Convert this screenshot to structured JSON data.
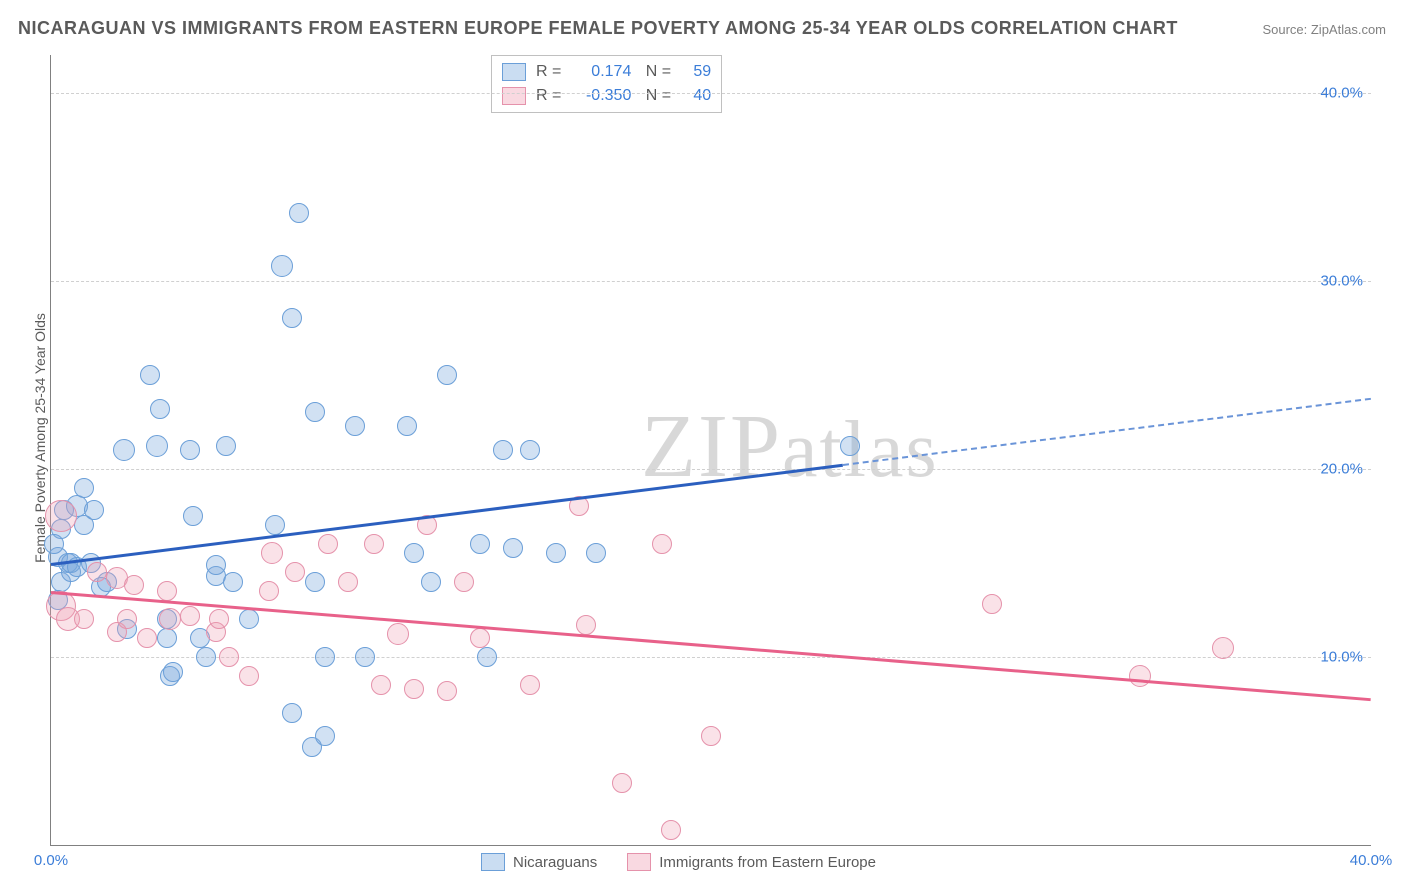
{
  "title": "NICARAGUAN VS IMMIGRANTS FROM EASTERN EUROPE FEMALE POVERTY AMONG 25-34 YEAR OLDS CORRELATION CHART",
  "source": "Source: ZipAtlas.com",
  "y_axis_label": "Female Poverty Among 25-34 Year Olds",
  "watermark": "ZIPatlas",
  "chart": {
    "type": "scatter",
    "xlim": [
      0,
      40
    ],
    "ylim": [
      0,
      42
    ],
    "x_ticks": [
      {
        "v": 0,
        "label": "0.0%"
      },
      {
        "v": 40,
        "label": "40.0%"
      }
    ],
    "y_ticks": [
      {
        "v": 10,
        "label": "10.0%"
      },
      {
        "v": 20,
        "label": "20.0%"
      },
      {
        "v": 30,
        "label": "30.0%"
      },
      {
        "v": 40,
        "label": "40.0%"
      }
    ],
    "background_color": "#ffffff",
    "grid_color": "#d0d0d0",
    "series": [
      {
        "name": "Nicaraguans",
        "color_fill": "rgba(123,170,222,0.35)",
        "color_stroke": "#6b9fd8",
        "marker_class": "blue",
        "r_value": "0.174",
        "n_value": "59",
        "trend": {
          "x0": 0,
          "y0": 15.0,
          "x1": 40,
          "y1": 23.8,
          "dash_after_x": 24,
          "color": "#2b5fbf"
        },
        "points": [
          {
            "x": 0.2,
            "y": 15.3,
            "r": 9
          },
          {
            "x": 0.3,
            "y": 14.0,
            "r": 9
          },
          {
            "x": 0.3,
            "y": 16.8,
            "r": 9
          },
          {
            "x": 0.5,
            "y": 15.0,
            "r": 9
          },
          {
            "x": 0.4,
            "y": 17.8,
            "r": 9
          },
          {
            "x": 0.6,
            "y": 14.5,
            "r": 9
          },
          {
            "x": 0.6,
            "y": 15.0,
            "r": 9
          },
          {
            "x": 0.8,
            "y": 18.0,
            "r": 10
          },
          {
            "x": 0.8,
            "y": 14.8,
            "r": 9
          },
          {
            "x": 1.0,
            "y": 17.0,
            "r": 9
          },
          {
            "x": 1.0,
            "y": 19.0,
            "r": 9
          },
          {
            "x": 1.3,
            "y": 17.8,
            "r": 9
          },
          {
            "x": 1.2,
            "y": 15.0,
            "r": 9
          },
          {
            "x": 1.5,
            "y": 13.7,
            "r": 9
          },
          {
            "x": 1.7,
            "y": 14.0,
            "r": 9
          },
          {
            "x": 2.2,
            "y": 21.0,
            "r": 10
          },
          {
            "x": 2.3,
            "y": 11.5,
            "r": 9
          },
          {
            "x": 3.0,
            "y": 25.0,
            "r": 9
          },
          {
            "x": 3.2,
            "y": 21.2,
            "r": 10
          },
          {
            "x": 3.3,
            "y": 23.2,
            "r": 9
          },
          {
            "x": 3.5,
            "y": 12.0,
            "r": 9
          },
          {
            "x": 3.5,
            "y": 11.0,
            "r": 9
          },
          {
            "x": 3.6,
            "y": 9.0,
            "r": 9
          },
          {
            "x": 3.7,
            "y": 9.2,
            "r": 9
          },
          {
            "x": 4.2,
            "y": 21.0,
            "r": 9
          },
          {
            "x": 4.3,
            "y": 17.5,
            "r": 9
          },
          {
            "x": 4.5,
            "y": 11.0,
            "r": 9
          },
          {
            "x": 4.7,
            "y": 10.0,
            "r": 9
          },
          {
            "x": 5.0,
            "y": 14.3,
            "r": 9
          },
          {
            "x": 5.0,
            "y": 14.9,
            "r": 9
          },
          {
            "x": 5.3,
            "y": 21.2,
            "r": 9
          },
          {
            "x": 5.5,
            "y": 14.0,
            "r": 9
          },
          {
            "x": 6.0,
            "y": 12.0,
            "r": 9
          },
          {
            "x": 6.8,
            "y": 17.0,
            "r": 9
          },
          {
            "x": 7.0,
            "y": 30.8,
            "r": 10
          },
          {
            "x": 7.3,
            "y": 28.0,
            "r": 9
          },
          {
            "x": 7.3,
            "y": 7.0,
            "r": 9
          },
          {
            "x": 7.5,
            "y": 33.6,
            "r": 9
          },
          {
            "x": 7.9,
            "y": 5.2,
            "r": 9
          },
          {
            "x": 8.0,
            "y": 23.0,
            "r": 9
          },
          {
            "x": 8.0,
            "y": 14.0,
            "r": 9
          },
          {
            "x": 8.3,
            "y": 10.0,
            "r": 9
          },
          {
            "x": 8.3,
            "y": 5.8,
            "r": 9
          },
          {
            "x": 9.2,
            "y": 22.3,
            "r": 9
          },
          {
            "x": 9.5,
            "y": 10.0,
            "r": 9
          },
          {
            "x": 10.8,
            "y": 22.3,
            "r": 9
          },
          {
            "x": 11.0,
            "y": 15.5,
            "r": 9
          },
          {
            "x": 11.5,
            "y": 14.0,
            "r": 9
          },
          {
            "x": 12.0,
            "y": 25.0,
            "r": 9
          },
          {
            "x": 13.0,
            "y": 16.0,
            "r": 9
          },
          {
            "x": 13.2,
            "y": 10.0,
            "r": 9
          },
          {
            "x": 13.7,
            "y": 21.0,
            "r": 9
          },
          {
            "x": 14.0,
            "y": 15.8,
            "r": 9
          },
          {
            "x": 14.5,
            "y": 21.0,
            "r": 9
          },
          {
            "x": 15.3,
            "y": 15.5,
            "r": 9
          },
          {
            "x": 16.5,
            "y": 15.5,
            "r": 9
          },
          {
            "x": 24.2,
            "y": 21.2,
            "r": 9
          },
          {
            "x": 0.1,
            "y": 16.0,
            "r": 9
          },
          {
            "x": 0.2,
            "y": 13.0,
            "r": 9
          }
        ]
      },
      {
        "name": "Immigrants from Eastern Europe",
        "color_fill": "rgba(240,160,180,0.3)",
        "color_stroke": "#e592ab",
        "marker_class": "pink",
        "r_value": "-0.350",
        "n_value": "40",
        "trend": {
          "x0": 0,
          "y0": 13.5,
          "x1": 40,
          "y1": 7.8,
          "color": "#e8618a"
        },
        "points": [
          {
            "x": 0.3,
            "y": 17.5,
            "r": 15
          },
          {
            "x": 0.3,
            "y": 12.7,
            "r": 14
          },
          {
            "x": 0.5,
            "y": 12.0,
            "r": 11
          },
          {
            "x": 1.0,
            "y": 12.0,
            "r": 9
          },
          {
            "x": 1.4,
            "y": 14.5,
            "r": 9
          },
          {
            "x": 2.0,
            "y": 14.2,
            "r": 10
          },
          {
            "x": 2.0,
            "y": 11.3,
            "r": 9
          },
          {
            "x": 2.3,
            "y": 12.0,
            "r": 9
          },
          {
            "x": 2.5,
            "y": 13.8,
            "r": 9
          },
          {
            "x": 2.9,
            "y": 11.0,
            "r": 9
          },
          {
            "x": 3.5,
            "y": 13.5,
            "r": 9
          },
          {
            "x": 3.6,
            "y": 12.0,
            "r": 10
          },
          {
            "x": 4.2,
            "y": 12.2,
            "r": 9
          },
          {
            "x": 5.0,
            "y": 11.3,
            "r": 9
          },
          {
            "x": 5.1,
            "y": 12.0,
            "r": 9
          },
          {
            "x": 5.4,
            "y": 10.0,
            "r": 9
          },
          {
            "x": 6.7,
            "y": 15.5,
            "r": 10
          },
          {
            "x": 6.6,
            "y": 13.5,
            "r": 9
          },
          {
            "x": 7.4,
            "y": 14.5,
            "r": 9
          },
          {
            "x": 8.4,
            "y": 16.0,
            "r": 9
          },
          {
            "x": 9.0,
            "y": 14.0,
            "r": 9
          },
          {
            "x": 9.8,
            "y": 16.0,
            "r": 9
          },
          {
            "x": 10.0,
            "y": 8.5,
            "r": 9
          },
          {
            "x": 10.5,
            "y": 11.2,
            "r": 10
          },
          {
            "x": 11.0,
            "y": 8.3,
            "r": 9
          },
          {
            "x": 11.4,
            "y": 17.0,
            "r": 9
          },
          {
            "x": 12.0,
            "y": 8.2,
            "r": 9
          },
          {
            "x": 12.5,
            "y": 14.0,
            "r": 9
          },
          {
            "x": 13.0,
            "y": 11.0,
            "r": 9
          },
          {
            "x": 14.5,
            "y": 8.5,
            "r": 9
          },
          {
            "x": 16.0,
            "y": 18.0,
            "r": 9
          },
          {
            "x": 16.2,
            "y": 11.7,
            "r": 9
          },
          {
            "x": 17.3,
            "y": 3.3,
            "r": 9
          },
          {
            "x": 18.5,
            "y": 16.0,
            "r": 9
          },
          {
            "x": 18.8,
            "y": 0.8,
            "r": 9
          },
          {
            "x": 20.0,
            "y": 5.8,
            "r": 9
          },
          {
            "x": 28.5,
            "y": 12.8,
            "r": 9
          },
          {
            "x": 33.0,
            "y": 9.0,
            "r": 10
          },
          {
            "x": 35.5,
            "y": 10.5,
            "r": 10
          },
          {
            "x": 6.0,
            "y": 9.0,
            "r": 9
          }
        ]
      }
    ],
    "legend_bottom": [
      {
        "swatch": "blue",
        "label": "Nicaraguans"
      },
      {
        "swatch": "pink",
        "label": "Immigrants from Eastern Europe"
      }
    ]
  },
  "font": {
    "title_size": 18,
    "axis_size": 14,
    "tick_size": 15
  }
}
